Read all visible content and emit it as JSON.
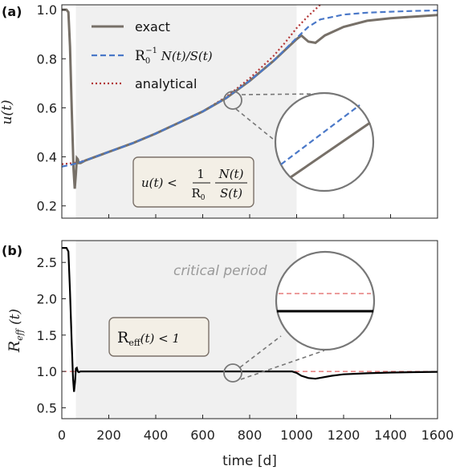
{
  "figure": {
    "x_label": "time [d]",
    "x_ticks": [
      "0",
      "200",
      "400",
      "600",
      "800",
      "1000",
      "1200",
      "1400",
      "1600"
    ]
  },
  "colors": {
    "exact": "#777068",
    "approx": "#4a78c8",
    "analytical": "#b23535",
    "reff": "#000000",
    "reff_ref": "#e06060",
    "shade": "#f0f0f0",
    "box_fill": "#f3efe6",
    "box_border": "#7a7068"
  },
  "chart_data": [
    {
      "type": "line",
      "panel_label": "(a)",
      "ylabel": "u(t)",
      "xlim": [
        0,
        1600
      ],
      "ylim": [
        0.15,
        1.02
      ],
      "y_ticks": [
        "1.0",
        "0.8",
        "0.6",
        "0.4",
        "0.2"
      ],
      "shaded_region": [
        60,
        1000
      ],
      "inequality_box": {
        "lhs": "u(t) <",
        "frac1_num": "1",
        "frac1_den": "R",
        "frac1_den_sub": "0",
        "frac2_num": "N(t)",
        "frac2_den": "S(t)"
      },
      "legend": {
        "exact": "exact",
        "approx": "R",
        "approx_sub": "0",
        "approx_sup": "−1",
        "approx_tail": " N(t)/S(t)",
        "analytical": "analytical"
      },
      "series": [
        {
          "key": "exact",
          "x": [
            0,
            20,
            28,
            35,
            42,
            50,
            55,
            60,
            64,
            68,
            72,
            80,
            100,
            200,
            300,
            400,
            500,
            600,
            700,
            800,
            900,
            1000,
            1020,
            1050,
            1080,
            1120,
            1200,
            1300,
            1400,
            1500,
            1600
          ],
          "y": [
            1.0,
            1.0,
            0.99,
            0.85,
            0.6,
            0.35,
            0.27,
            0.33,
            0.395,
            0.39,
            0.375,
            0.375,
            0.385,
            0.42,
            0.455,
            0.495,
            0.54,
            0.585,
            0.64,
            0.71,
            0.79,
            0.88,
            0.895,
            0.87,
            0.865,
            0.895,
            0.93,
            0.955,
            0.965,
            0.972,
            0.978
          ]
        },
        {
          "key": "approx",
          "x": [
            0,
            50,
            100,
            200,
            300,
            400,
            500,
            600,
            700,
            800,
            900,
            1000,
            1050,
            1100,
            1200,
            1300,
            1400,
            1500,
            1600
          ],
          "y": [
            0.36,
            0.37,
            0.385,
            0.42,
            0.455,
            0.495,
            0.54,
            0.585,
            0.64,
            0.71,
            0.79,
            0.885,
            0.93,
            0.96,
            0.98,
            0.988,
            0.992,
            0.995,
            0.997
          ]
        },
        {
          "key": "analytical",
          "x": [
            0,
            50,
            100,
            200,
            300,
            400,
            500,
            600,
            700,
            800,
            900,
            950,
            1000,
            1050,
            1100,
            1130
          ],
          "y": [
            0.37,
            0.375,
            0.385,
            0.42,
            0.455,
            0.495,
            0.54,
            0.585,
            0.645,
            0.72,
            0.81,
            0.865,
            0.925,
            0.975,
            1.02,
            1.05
          ]
        }
      ]
    },
    {
      "type": "line",
      "panel_label": "(b)",
      "ylabel": "R_eff (t)",
      "ylabel_main": "R",
      "ylabel_sub": "eff",
      "ylabel_tail": " (t)",
      "xlim": [
        0,
        1600
      ],
      "ylim": [
        0.35,
        2.8
      ],
      "y_ticks": [
        "2.5",
        "2.0",
        "1.5",
        "1.0",
        "0.5"
      ],
      "shaded_region": [
        60,
        1000
      ],
      "annotation": "critical period",
      "inequality_box": {
        "main": "R",
        "sub": "eff",
        "tail": "(t) < 1"
      },
      "reference_line": 1.0,
      "series": [
        {
          "key": "reff",
          "x": [
            0,
            20,
            28,
            35,
            42,
            48,
            52,
            56,
            60,
            64,
            68,
            72,
            80,
            100,
            300,
            600,
            900,
            980,
            1000,
            1020,
            1050,
            1080,
            1150,
            1200,
            1300,
            1400,
            1500,
            1600
          ],
          "y": [
            2.7,
            2.7,
            2.65,
            2.1,
            1.4,
            0.9,
            0.72,
            0.85,
            1.04,
            1.05,
            1.0,
            0.99,
            1.0,
            1.0,
            1.0,
            1.0,
            1.0,
            1.0,
            0.98,
            0.94,
            0.91,
            0.9,
            0.94,
            0.96,
            0.975,
            0.985,
            0.99,
            0.995
          ]
        }
      ]
    }
  ]
}
